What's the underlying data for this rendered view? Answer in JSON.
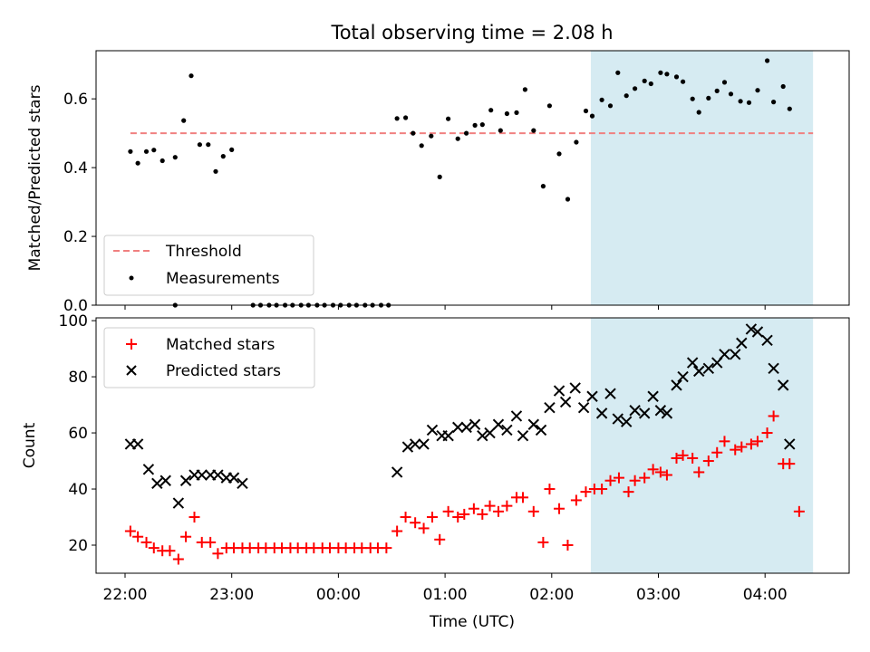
{
  "figure": {
    "title": "Total observing time = 2.08 h",
    "xlabel": "Time (UTC)",
    "xticks": [
      "22:00",
      "23:00",
      "00:00",
      "01:00",
      "02:00",
      "03:00",
      "04:00"
    ],
    "colors": {
      "threshold": "#f08080",
      "measurements": "#000000",
      "matched": "#ff0000",
      "predicted": "#000000",
      "span": "#add8e6"
    }
  },
  "chart_data": [
    {
      "type": "scatter",
      "ylabel": "Matched/Predicted stars",
      "ylim": [
        0.0,
        0.74
      ],
      "yticks": [
        "0.0",
        "0.2",
        "0.4",
        "0.6"
      ],
      "x_unit": "hours since 22:00 UTC",
      "highlight_span": [
        "02:22",
        "04:27"
      ],
      "threshold": {
        "name": "Threshold",
        "value": 0.5,
        "x_range": [
          "22:03",
          "04:27"
        ]
      },
      "legend": {
        "placement": "lower-left",
        "entries": [
          "Threshold",
          "Measurements"
        ]
      },
      "series": [
        {
          "name": "Measurements",
          "points": [
            [
              0.05,
              0.447
            ],
            [
              0.12,
              0.413
            ],
            [
              0.2,
              0.447
            ],
            [
              0.27,
              0.451
            ],
            [
              0.35,
              0.42
            ],
            [
              0.47,
              0.43
            ],
            [
              0.55,
              0.537
            ],
            [
              0.62,
              0.667
            ],
            [
              0.7,
              0.467
            ],
            [
              0.78,
              0.467
            ],
            [
              0.85,
              0.389
            ],
            [
              0.92,
              0.433
            ],
            [
              1.0,
              0.452
            ],
            [
              0.47,
              0.0
            ],
            [
              1.2,
              0.0
            ],
            [
              1.27,
              0.0
            ],
            [
              1.35,
              0.0
            ],
            [
              1.42,
              0.0
            ],
            [
              1.5,
              0.0
            ],
            [
              1.57,
              0.0
            ],
            [
              1.65,
              0.0
            ],
            [
              1.72,
              0.0
            ],
            [
              1.8,
              0.0
            ],
            [
              1.87,
              0.0
            ],
            [
              1.95,
              0.0
            ],
            [
              2.02,
              0.0
            ],
            [
              2.1,
              0.0
            ],
            [
              2.17,
              0.0
            ],
            [
              2.25,
              0.0
            ],
            [
              2.32,
              0.0
            ],
            [
              2.4,
              0.0
            ],
            [
              2.47,
              0.0
            ],
            [
              2.55,
              0.543
            ],
            [
              2.63,
              0.545
            ],
            [
              2.7,
              0.5
            ],
            [
              2.78,
              0.464
            ],
            [
              2.87,
              0.492
            ],
            [
              2.95,
              0.373
            ],
            [
              3.03,
              0.542
            ],
            [
              3.12,
              0.484
            ],
            [
              3.2,
              0.5
            ],
            [
              3.28,
              0.523
            ],
            [
              3.35,
              0.525
            ],
            [
              3.43,
              0.567
            ],
            [
              3.52,
              0.508
            ],
            [
              3.58,
              0.557
            ],
            [
              3.67,
              0.56
            ],
            [
              3.75,
              0.627
            ],
            [
              3.83,
              0.508
            ],
            [
              3.92,
              0.346
            ],
            [
              3.98,
              0.58
            ],
            [
              4.07,
              0.44
            ],
            [
              4.15,
              0.308
            ],
            [
              4.23,
              0.474
            ],
            [
              4.32,
              0.565
            ],
            [
              4.38,
              0.55
            ],
            [
              4.47,
              0.597
            ],
            [
              4.55,
              0.58
            ],
            [
              4.62,
              0.676
            ],
            [
              4.7,
              0.609
            ],
            [
              4.78,
              0.63
            ],
            [
              4.87,
              0.652
            ],
            [
              4.93,
              0.644
            ],
            [
              5.02,
              0.676
            ],
            [
              5.08,
              0.672
            ],
            [
              5.17,
              0.664
            ],
            [
              5.23,
              0.65
            ],
            [
              5.32,
              0.6
            ],
            [
              5.38,
              0.561
            ],
            [
              5.47,
              0.602
            ],
            [
              5.55,
              0.623
            ],
            [
              5.62,
              0.648
            ],
            [
              5.68,
              0.614
            ],
            [
              5.77,
              0.593
            ],
            [
              5.85,
              0.589
            ],
            [
              5.93,
              0.625
            ],
            [
              6.02,
              0.711
            ],
            [
              6.08,
              0.591
            ],
            [
              6.17,
              0.636
            ],
            [
              6.23,
              0.571
            ]
          ]
        }
      ]
    },
    {
      "type": "scatter",
      "ylabel": "Count",
      "ylim": [
        10,
        101
      ],
      "yticks": [
        "20",
        "40",
        "60",
        "80",
        "100"
      ],
      "x_unit": "hours since 22:00 UTC",
      "highlight_span": [
        "02:22",
        "04:27"
      ],
      "legend": {
        "placement": "upper-left",
        "entries": [
          "Matched stars",
          "Predicted stars"
        ]
      },
      "series": [
        {
          "name": "Matched stars",
          "marker": "plus",
          "points": [
            [
              0.05,
              25
            ],
            [
              0.12,
              23
            ],
            [
              0.2,
              21
            ],
            [
              0.27,
              19
            ],
            [
              0.35,
              18
            ],
            [
              0.42,
              18
            ],
            [
              0.5,
              15
            ],
            [
              0.57,
              23
            ],
            [
              0.65,
              30
            ],
            [
              0.72,
              21
            ],
            [
              0.8,
              21
            ],
            [
              0.87,
              17
            ],
            [
              0.95,
              19
            ],
            [
              1.02,
              19
            ],
            [
              1.1,
              19
            ],
            [
              1.17,
              19
            ],
            [
              1.25,
              19
            ],
            [
              1.32,
              19
            ],
            [
              1.4,
              19
            ],
            [
              1.47,
              19
            ],
            [
              1.55,
              19
            ],
            [
              1.62,
              19
            ],
            [
              1.7,
              19
            ],
            [
              1.77,
              19
            ],
            [
              1.85,
              19
            ],
            [
              1.92,
              19
            ],
            [
              2.0,
              19
            ],
            [
              2.07,
              19
            ],
            [
              2.15,
              19
            ],
            [
              2.22,
              19
            ],
            [
              2.3,
              19
            ],
            [
              2.37,
              19
            ],
            [
              2.45,
              19
            ],
            [
              2.55,
              25
            ],
            [
              2.63,
              30
            ],
            [
              2.72,
              28
            ],
            [
              2.8,
              26
            ],
            [
              2.88,
              30
            ],
            [
              2.95,
              22
            ],
            [
              3.03,
              32
            ],
            [
              3.12,
              30
            ],
            [
              3.18,
              31
            ],
            [
              3.27,
              33
            ],
            [
              3.35,
              31
            ],
            [
              3.42,
              34
            ],
            [
              3.5,
              32
            ],
            [
              3.58,
              34
            ],
            [
              3.67,
              37
            ],
            [
              3.73,
              37
            ],
            [
              3.83,
              32
            ],
            [
              3.92,
              21
            ],
            [
              3.98,
              40
            ],
            [
              4.07,
              33
            ],
            [
              4.15,
              20
            ],
            [
              4.23,
              36
            ],
            [
              4.32,
              39
            ],
            [
              4.4,
              40
            ],
            [
              4.47,
              40
            ],
            [
              4.55,
              43
            ],
            [
              4.63,
              44
            ],
            [
              4.72,
              39
            ],
            [
              4.78,
              43
            ],
            [
              4.87,
              44
            ],
            [
              4.95,
              47
            ],
            [
              5.02,
              46
            ],
            [
              5.08,
              45
            ],
            [
              5.17,
              51
            ],
            [
              5.23,
              52
            ],
            [
              5.32,
              51
            ],
            [
              5.38,
              46
            ],
            [
              5.47,
              50
            ],
            [
              5.55,
              53
            ],
            [
              5.62,
              57
            ],
            [
              5.72,
              54
            ],
            [
              5.78,
              55
            ],
            [
              5.87,
              56
            ],
            [
              5.93,
              57
            ],
            [
              6.02,
              60
            ],
            [
              6.08,
              66
            ],
            [
              6.17,
              49
            ],
            [
              6.23,
              49
            ],
            [
              6.32,
              32
            ]
          ]
        },
        {
          "name": "Predicted stars",
          "marker": "x",
          "points": [
            [
              0.05,
              56
            ],
            [
              0.12,
              56
            ],
            [
              0.22,
              47
            ],
            [
              0.3,
              42
            ],
            [
              0.38,
              43
            ],
            [
              0.5,
              35
            ],
            [
              0.57,
              43
            ],
            [
              0.65,
              45
            ],
            [
              0.72,
              45
            ],
            [
              0.8,
              45
            ],
            [
              0.87,
              45
            ],
            [
              0.95,
              44
            ],
            [
              1.02,
              44
            ],
            [
              1.1,
              42
            ],
            [
              2.55,
              46
            ],
            [
              2.65,
              55
            ],
            [
              2.72,
              56
            ],
            [
              2.8,
              56
            ],
            [
              2.88,
              61
            ],
            [
              2.97,
              59
            ],
            [
              3.03,
              59
            ],
            [
              3.12,
              62
            ],
            [
              3.2,
              62
            ],
            [
              3.28,
              63
            ],
            [
              3.35,
              59
            ],
            [
              3.42,
              60
            ],
            [
              3.5,
              63
            ],
            [
              3.58,
              61
            ],
            [
              3.67,
              66
            ],
            [
              3.73,
              59
            ],
            [
              3.83,
              63
            ],
            [
              3.9,
              61
            ],
            [
              3.98,
              69
            ],
            [
              4.07,
              75
            ],
            [
              4.13,
              71
            ],
            [
              4.22,
              76
            ],
            [
              4.3,
              69
            ],
            [
              4.38,
              73
            ],
            [
              4.47,
              67
            ],
            [
              4.55,
              74
            ],
            [
              4.62,
              65
            ],
            [
              4.7,
              64
            ],
            [
              4.78,
              68
            ],
            [
              4.87,
              67
            ],
            [
              4.95,
              73
            ],
            [
              5.02,
              68
            ],
            [
              5.08,
              67
            ],
            [
              5.17,
              77
            ],
            [
              5.23,
              80
            ],
            [
              5.32,
              85
            ],
            [
              5.38,
              82
            ],
            [
              5.47,
              83
            ],
            [
              5.55,
              85
            ],
            [
              5.62,
              88
            ],
            [
              5.72,
              88
            ],
            [
              5.78,
              92
            ],
            [
              5.87,
              97
            ],
            [
              5.93,
              96
            ],
            [
              6.02,
              93
            ],
            [
              6.08,
              83
            ],
            [
              6.17,
              77
            ],
            [
              6.23,
              56
            ]
          ]
        }
      ]
    }
  ]
}
